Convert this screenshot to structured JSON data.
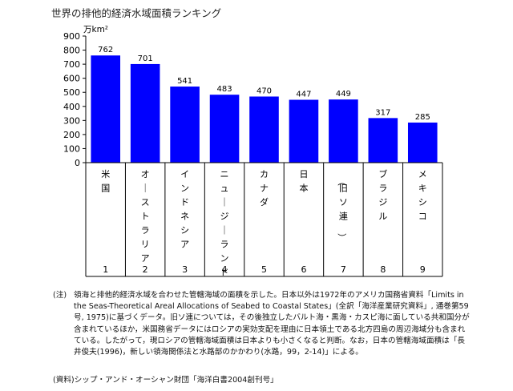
{
  "chart_data": {
    "type": "bar",
    "title": "世界の排他的経済水域面積ランキング",
    "unit_label": "万km²",
    "ylim": [
      0,
      900
    ],
    "yticks": [
      0,
      100,
      200,
      300,
      400,
      500,
      600,
      700,
      800,
      900
    ],
    "categories": [
      "米国",
      "オーストラリア",
      "インドネシア",
      "ニュージーランド",
      "カナダ",
      "日本",
      "（旧ソ連）",
      "ブラジル",
      "メキシコ"
    ],
    "ranks": [
      "1",
      "2",
      "3",
      "4",
      "5",
      "6",
      "7",
      "8",
      "9"
    ],
    "values": [
      762,
      701,
      541,
      483,
      470,
      447,
      449,
      317,
      285
    ],
    "bar_color": "#0000ff",
    "grid": false,
    "legend": "none"
  },
  "note": {
    "label": "(注)",
    "text": "領海と排他的経済水域を合わせた管轄海域の面積を示した。日本以外は1972年のアメリカ国務省資料「Limits in the Seas-Theoretical Areal Allocations of Seabed to Coastal States」(全訳「海洋産業研究資料」, 通巻第59号, 1975)に基づくデータ。旧ソ連については，その後独立したバルト海・黒海・カスピ海に面している共和国分が含まれているほか，米国務省データにはロシアの実効支配を理由に日本領土である北方四島の周辺海域分も含まれている。したがって，現ロシアの管轄海域面積は日本よりも小さくなると判断。なお，日本の管轄海域面積は「長井俊夫(1996)，新しい領海関係法と水路部のかかわり(水路，99，2-14)」による。"
  },
  "source": "(資料)シップ・アンド・オーシャン財団「海洋白書2004創刊号」"
}
